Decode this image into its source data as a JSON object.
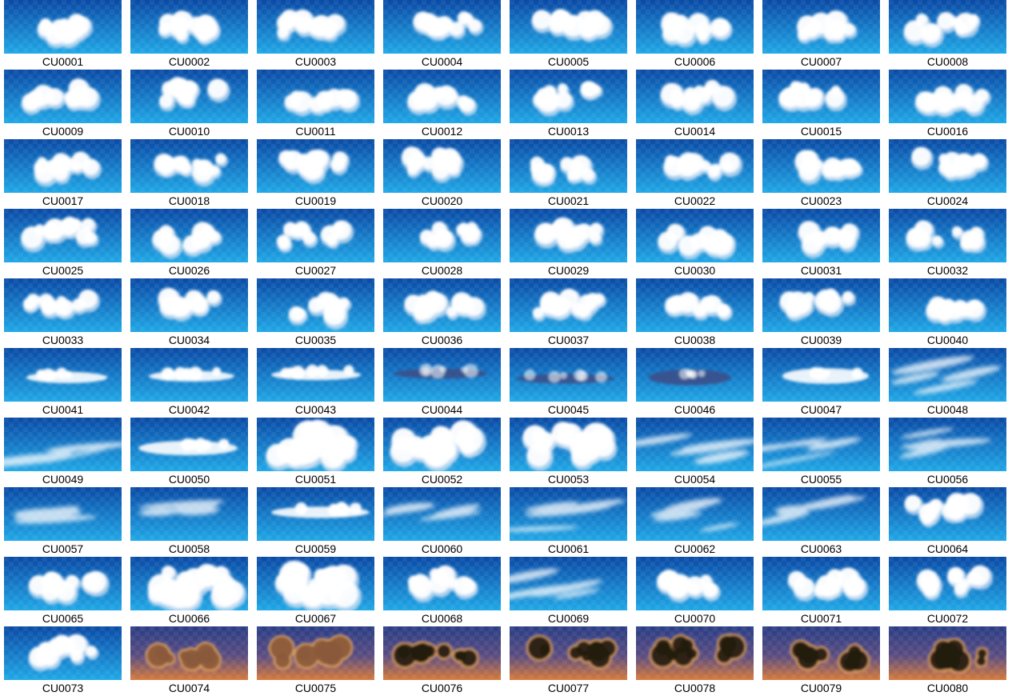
{
  "gallery": {
    "items": [
      {
        "label": "CU0001",
        "style": "cloud"
      },
      {
        "label": "CU0002",
        "style": "cloud"
      },
      {
        "label": "CU0003",
        "style": "cloud"
      },
      {
        "label": "CU0004",
        "style": "cloud"
      },
      {
        "label": "CU0005",
        "style": "cloud"
      },
      {
        "label": "CU0006",
        "style": "cloud"
      },
      {
        "label": "CU0007",
        "style": "cloud"
      },
      {
        "label": "CU0008",
        "style": "cloud"
      },
      {
        "label": "CU0009",
        "style": "cloud"
      },
      {
        "label": "CU0010",
        "style": "cloud"
      },
      {
        "label": "CU0011",
        "style": "cloud"
      },
      {
        "label": "CU0012",
        "style": "cloud"
      },
      {
        "label": "CU0013",
        "style": "cloud"
      },
      {
        "label": "CU0014",
        "style": "cloud"
      },
      {
        "label": "CU0015",
        "style": "cloud"
      },
      {
        "label": "CU0016",
        "style": "cloud"
      },
      {
        "label": "CU0017",
        "style": "cloud"
      },
      {
        "label": "CU0018",
        "style": "cloud"
      },
      {
        "label": "CU0019",
        "style": "cloud"
      },
      {
        "label": "CU0020",
        "style": "cloud"
      },
      {
        "label": "CU0021",
        "style": "cloud"
      },
      {
        "label": "CU0022",
        "style": "cloud"
      },
      {
        "label": "CU0023",
        "style": "cloud"
      },
      {
        "label": "CU0024",
        "style": "cloud"
      },
      {
        "label": "CU0025",
        "style": "cloud"
      },
      {
        "label": "CU0026",
        "style": "cloud"
      },
      {
        "label": "CU0027",
        "style": "cloud"
      },
      {
        "label": "CU0028",
        "style": "cloud"
      },
      {
        "label": "CU0029",
        "style": "cloud"
      },
      {
        "label": "CU0030",
        "style": "cloud"
      },
      {
        "label": "CU0031",
        "style": "cloud"
      },
      {
        "label": "CU0032",
        "style": "cloud"
      },
      {
        "label": "CU0033",
        "style": "cloud"
      },
      {
        "label": "CU0034",
        "style": "cloud"
      },
      {
        "label": "CU0035",
        "style": "cloud"
      },
      {
        "label": "CU0036",
        "style": "cloud"
      },
      {
        "label": "CU0037",
        "style": "cloud"
      },
      {
        "label": "CU0038",
        "style": "cloud"
      },
      {
        "label": "CU0039",
        "style": "cloud"
      },
      {
        "label": "CU0040",
        "style": "cloud"
      },
      {
        "label": "CU0041",
        "style": "flat"
      },
      {
        "label": "CU0042",
        "style": "flat"
      },
      {
        "label": "CU0043",
        "style": "flat"
      },
      {
        "label": "CU0044",
        "style": "dark-flat"
      },
      {
        "label": "CU0045",
        "style": "dark-flat"
      },
      {
        "label": "CU0046",
        "style": "dark-flat"
      },
      {
        "label": "CU0047",
        "style": "flat"
      },
      {
        "label": "CU0048",
        "style": "wisp"
      },
      {
        "label": "CU0049",
        "style": "wisp"
      },
      {
        "label": "CU0050",
        "style": "flat"
      },
      {
        "label": "CU0051",
        "style": "cumulus"
      },
      {
        "label": "CU0052",
        "style": "cumulus"
      },
      {
        "label": "CU0053",
        "style": "cumulus"
      },
      {
        "label": "CU0054",
        "style": "wisp"
      },
      {
        "label": "CU0055",
        "style": "wisp"
      },
      {
        "label": "CU0056",
        "style": "wisp"
      },
      {
        "label": "CU0057",
        "style": "wisp"
      },
      {
        "label": "CU0058",
        "style": "wisp"
      },
      {
        "label": "CU0059",
        "style": "flat"
      },
      {
        "label": "CU0060",
        "style": "wisp"
      },
      {
        "label": "CU0061",
        "style": "wisp"
      },
      {
        "label": "CU0062",
        "style": "wisp"
      },
      {
        "label": "CU0063",
        "style": "wisp"
      },
      {
        "label": "CU0064",
        "style": "cloud"
      },
      {
        "label": "CU0065",
        "style": "cloud"
      },
      {
        "label": "CU0066",
        "style": "cumulus"
      },
      {
        "label": "CU0067",
        "style": "cumulus"
      },
      {
        "label": "CU0068",
        "style": "cloud"
      },
      {
        "label": "CU0069",
        "style": "wisp"
      },
      {
        "label": "CU0070",
        "style": "cloud"
      },
      {
        "label": "CU0071",
        "style": "cloud"
      },
      {
        "label": "CU0072",
        "style": "cloud"
      },
      {
        "label": "CU0073",
        "style": "cloud"
      },
      {
        "label": "CU0074",
        "style": "sunset-bright"
      },
      {
        "label": "CU0075",
        "style": "sunset-bright"
      },
      {
        "label": "CU0076",
        "style": "sunset-dark"
      },
      {
        "label": "CU0077",
        "style": "sunset-dark"
      },
      {
        "label": "CU0078",
        "style": "sunset-dark"
      },
      {
        "label": "CU0079",
        "style": "sunset-dark"
      },
      {
        "label": "CU0080",
        "style": "sunset-dark"
      }
    ]
  },
  "colors": {
    "sky_top": "#0a4aa6",
    "sky_bottom": "#1fa7e6",
    "sunset_top": "#2a3d86",
    "sunset_mid": "#5a4c80",
    "sunset_bottom": "#d67a3a",
    "cloud_white": "#ffffff",
    "cloud_shade": "#c7ddf2",
    "cloud_dark": "#3a4f8a",
    "storm_dark": "#241b10",
    "glow_orange": "#f3b06a",
    "label_text": "#000000"
  }
}
